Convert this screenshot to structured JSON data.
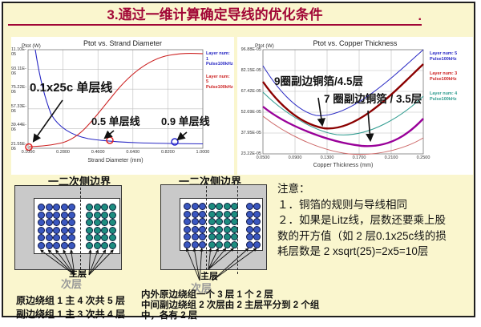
{
  "slide": {
    "title": "3.通过一维计算确定导线的优化条件",
    "title_suffix": ".",
    "accent_color": "#A10636",
    "background_color": "#FAF6CE"
  },
  "chart_left": {
    "title": "Ptot vs. Strand Diameter",
    "y_label": "Ptot (W)",
    "x_label": "Strand Diameter (mm)",
    "y_ticks": [
      "11.10E-05",
      "93.11E-06",
      "75.22E-06",
      "57.33E-06",
      "39.44E-06",
      "21.55E-06"
    ],
    "x_ticks": [
      "0.1000",
      "0.2800",
      "0.4600",
      "0.6400",
      "0.8200",
      "1.0000"
    ],
    "legend": [
      {
        "line1": "Layer num: 1",
        "line2": "Pulse100kHz",
        "color": "#2929c4"
      },
      {
        "line1": "Layer num: 5",
        "line2": "Pulse100kHz",
        "color": "#cc2222"
      }
    ],
    "annotations": {
      "a1": "0.1x25c 单层线",
      "a2": "0.5 单层线",
      "a3": "0.9 单层线"
    }
  },
  "chart_right": {
    "title": "Ptot vs. Copper Thickness",
    "y_label": "Ptot (W)",
    "x_label": "Copper Thickness (mm)",
    "y_ticks": [
      "96.88E-05",
      "82.15E-05",
      "67.42E-05",
      "52.69E-05",
      "37.95E-05",
      "23.22E-05"
    ],
    "x_ticks": [
      "0.0500",
      "0.0900",
      "0.1300",
      "0.1700",
      "0.2100",
      "0.2500"
    ],
    "legend": [
      {
        "line1": "Layer num: 5",
        "line2": "Pulse100kHz",
        "color": "#2929c4"
      },
      {
        "line1": "Layer num: 3",
        "line2": "Pulse100kHz",
        "color": "#cc2222"
      },
      {
        "line1": "Layer num: 4",
        "line2": "Pulse100kHz",
        "color": "#2e9b8f"
      }
    ],
    "annotations": {
      "a1": "9圈副边铜箔/4.5层",
      "a2": "7 圈副边铜箔 / 3.5层"
    }
  },
  "chart_data": [
    {
      "type": "line",
      "title": "Ptot vs. Strand Diameter",
      "xlabel": "Strand Diameter (mm)",
      "ylabel": "Ptot (W)",
      "xlim": [
        0.1,
        1.0
      ],
      "ylim": [
        2.155e-05,
        0.000111
      ],
      "grid": true,
      "legend_position": "right",
      "x": [
        0.1,
        0.28,
        0.46,
        0.64,
        0.82,
        1.0
      ],
      "series": [
        {
          "name": "Layer num: 1 Pulse100kHz",
          "color": "#2929c4",
          "values": [
            0.000111,
            3.6e-05,
            2.7e-05,
            2.5e-05,
            2.4e-05,
            2.35e-05
          ]
        },
        {
          "name": "Layer num: 5 Pulse100kHz",
          "color": "#cc2222",
          "values": [
            2.2e-05,
            3e-05,
            6.5e-05,
            9.6e-05,
            0.000104,
            0.000105
          ]
        }
      ],
      "markers": [
        {
          "x": 0.1,
          "y": 2.2e-05,
          "label": "0.1x25c 单层线",
          "color": "red"
        },
        {
          "x": 0.5,
          "y": 2.5e-05,
          "label": "0.5 单层线",
          "color": "red"
        },
        {
          "x": 0.9,
          "y": 2.4e-05,
          "label": "0.9 单层线",
          "color": "blue"
        }
      ]
    },
    {
      "type": "line",
      "title": "Ptot vs. Copper Thickness",
      "xlabel": "Copper Thickness (mm)",
      "ylabel": "Ptot (W)",
      "xlim": [
        0.05,
        0.25
      ],
      "ylim": [
        0.0002322,
        0.0009688
      ],
      "grid": true,
      "legend_position": "right",
      "x": [
        0.05,
        0.09,
        0.13,
        0.17,
        0.21,
        0.25
      ],
      "series": [
        {
          "name": "Layer num: 5 Pulse100kHz",
          "color": "#2929c4",
          "values": [
            0.00086,
            0.0006,
            0.00052,
            0.00056,
            0.0007,
            0.00096
          ]
        },
        {
          "name": "Layer num: 3 Pulse100kHz",
          "color": "#8b0000",
          "values": [
            0.00074,
            0.0005,
            0.00043,
            0.00046,
            0.00058,
            0.00086
          ]
        },
        {
          "name": "Layer num: 4 Pulse100kHz",
          "color": "#2e9b8f",
          "values": [
            0.00067,
            0.00046,
            0.00038,
            0.00038,
            0.00046,
            0.00064
          ]
        },
        {
          "name": "unlabeled (thick purple)",
          "color": "#990099",
          "values": [
            0.00057,
            0.00039,
            0.00031,
            0.0003,
            0.00034,
            0.00048
          ]
        },
        {
          "name": "unlabeled (thin red)",
          "color": "#cc6666",
          "values": [
            0.0005,
            0.00034,
            0.00027,
            0.00024,
            0.00028,
            0.00035
          ]
        }
      ],
      "annotations": [
        "9圈副边铜箔/4.5层",
        "7 圈副边铜箔 / 3.5层"
      ]
    }
  ],
  "diagram_left": {
    "boundary_label": "一二次侧边界",
    "primary_label": "主层",
    "secondary_label": "次层",
    "groups": [
      {
        "name": "primary-winding",
        "color": "#3a57c0",
        "cols": 5,
        "rows": 6
      },
      {
        "name": "secondary-winding",
        "color": "#1d8d80",
        "cols": 4,
        "rows": 6
      }
    ],
    "captions": [
      "原边绕组 1 主 4 次共 5 层",
      "副边绕组 1 主 3 次共 4 层"
    ]
  },
  "diagram_right": {
    "boundary_label": "一二次侧边界",
    "primary_label": "主层",
    "secondary_label": "次层",
    "groups": [
      {
        "name": "primary-outer",
        "color": "#3a57c0",
        "cols": 3,
        "rows": 6
      },
      {
        "name": "secondary-middle",
        "color": "#1d8d80",
        "cols": 4,
        "rows": 6
      },
      {
        "name": "primary-inner",
        "color": "#3a57c0",
        "cols": 2,
        "rows": 6
      }
    ],
    "captions": [
      "内外原边绕组一个 3 层 1 个 2 层",
      "中间副边绕组 2 次层由 2 主层平分到 2 个组",
      "中，各有 2 层"
    ]
  },
  "notes": {
    "lines": [
      "注意：",
      "１．铜箔的规则与导线相同",
      "２．如果是Litz线，层数还要乘上股",
      "数的开方值（如 2 层0.1x25c线的损",
      "耗层数是 2 xsqrt(25)=2x5=10层"
    ]
  }
}
